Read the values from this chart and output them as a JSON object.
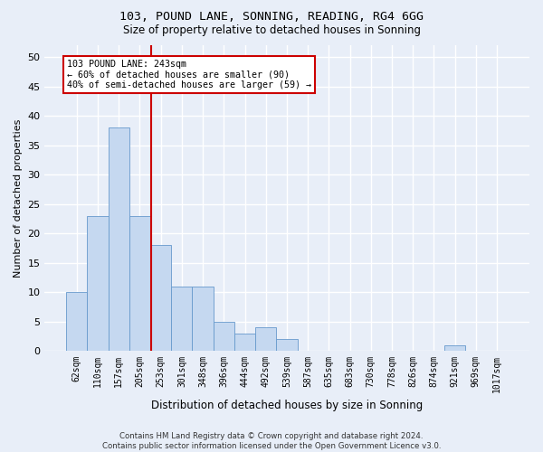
{
  "title1": "103, POUND LANE, SONNING, READING, RG4 6GG",
  "title2": "Size of property relative to detached houses in Sonning",
  "xlabel": "Distribution of detached houses by size in Sonning",
  "ylabel": "Number of detached properties",
  "bar_labels": [
    "62sqm",
    "110sqm",
    "157sqm",
    "205sqm",
    "253sqm",
    "301sqm",
    "348sqm",
    "396sqm",
    "444sqm",
    "492sqm",
    "539sqm",
    "587sqm",
    "635sqm",
    "683sqm",
    "730sqm",
    "778sqm",
    "826sqm",
    "874sqm",
    "921sqm",
    "969sqm",
    "1017sqm"
  ],
  "bar_values": [
    10,
    23,
    38,
    23,
    18,
    11,
    11,
    5,
    3,
    4,
    2,
    0,
    0,
    0,
    0,
    0,
    0,
    0,
    1,
    0,
    0
  ],
  "bar_color": "#c5d8f0",
  "bar_edgecolor": "#6699cc",
  "bar_width": 1.0,
  "ylim": [
    0,
    52
  ],
  "yticks": [
    0,
    5,
    10,
    15,
    20,
    25,
    30,
    35,
    40,
    45,
    50
  ],
  "vline_x": 3.54,
  "vline_color": "#cc0000",
  "annotation_text": "103 POUND LANE: 243sqm\n← 60% of detached houses are smaller (90)\n40% of semi-detached houses are larger (59) →",
  "annotation_box_facecolor": "#ffffff",
  "annotation_box_edgecolor": "#cc0000",
  "bg_color": "#e8eef8",
  "grid_color": "#ffffff",
  "footer": "Contains HM Land Registry data © Crown copyright and database right 2024.\nContains public sector information licensed under the Open Government Licence v3.0."
}
